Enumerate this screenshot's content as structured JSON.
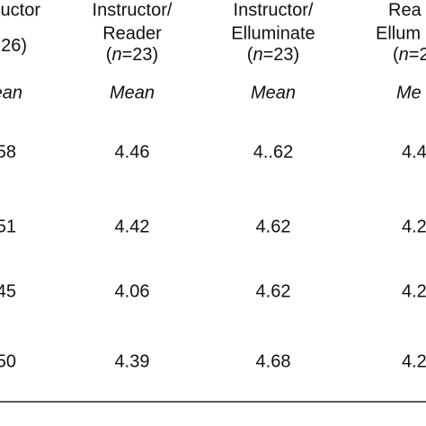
{
  "table": {
    "columns": [
      {
        "header": [
          "uctor"
        ],
        "sample": [
          "26)"
        ],
        "stat": "ean",
        "values": [
          "58",
          "51",
          "45",
          "50"
        ]
      },
      {
        "header": [
          "Instructor/",
          "Reader"
        ],
        "sample": [
          "(",
          "n",
          "=23)"
        ],
        "stat": "Mean",
        "values": [
          "4.46",
          "4.42",
          "4.06",
          "4.39"
        ]
      },
      {
        "header": [
          "Instructor/",
          "Elluminate"
        ],
        "sample": [
          "(",
          "n",
          "=23)"
        ],
        "stat": "Mean",
        "values": [
          "4..62",
          "4.62",
          "4.62",
          "4.68"
        ]
      },
      {
        "header": [
          "Rea",
          "Ellum"
        ],
        "sample": [
          "(",
          "n",
          "=2"
        ],
        "stat": "Me",
        "values": [
          "4.4",
          "4.2",
          "4.2",
          "4.2"
        ]
      }
    ]
  }
}
